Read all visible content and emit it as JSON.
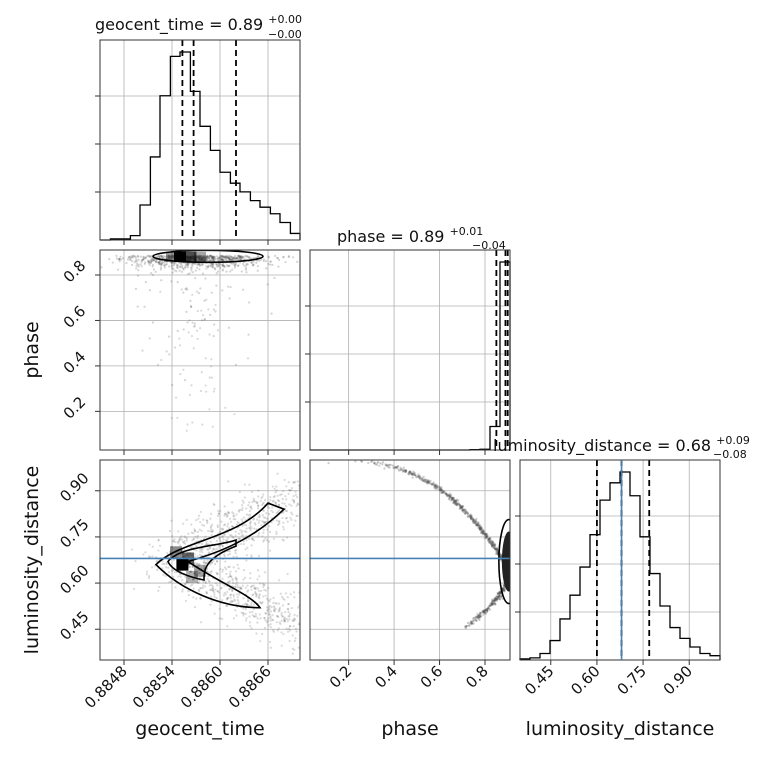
{
  "chart_data": {
    "type": "corner",
    "parameters": [
      "geocent_time",
      "phase",
      "luminosity_distance"
    ],
    "truth": {
      "luminosity_distance": 0.68
    },
    "colors": {
      "hist": "#000000",
      "truth": "#4682b4",
      "grid": "#b0b0b0",
      "scatter": "#555555"
    },
    "diagonal": [
      {
        "param": "geocent_time",
        "title_main": "geocent_time = 0.89",
        "title_sup": "+0.00",
        "title_sub": "−0.00",
        "range": [
          0.8845,
          0.887
        ],
        "ticks": [
          0.8848,
          0.8854,
          0.886,
          0.8866
        ],
        "tick_labels": [
          "0.8848",
          "0.8854",
          "0.8860",
          "0.8866"
        ],
        "quantiles": [
          0.88553,
          0.88567,
          0.8862
        ],
        "hist_bins": [
          0.8845,
          0.88463,
          0.88475,
          0.88488,
          0.885,
          0.88513,
          0.88525,
          0.88538,
          0.8855,
          0.88563,
          0.88575,
          0.88588,
          0.886,
          0.88613,
          0.88625,
          0.88638,
          0.8865,
          0.88663,
          0.88675,
          0.88688,
          0.887
        ],
        "hist_counts": [
          0,
          0.005,
          0.005,
          0.02,
          0.16,
          0.38,
          0.66,
          0.84,
          0.86,
          0.68,
          0.52,
          0.41,
          0.31,
          0.26,
          0.22,
          0.18,
          0.15,
          0.12,
          0.08,
          0.03
        ]
      },
      {
        "param": "phase",
        "title_main": "phase = 0.89",
        "title_sup": "+0.01",
        "title_sub": "−0.04",
        "range": [
          0.03,
          0.91
        ],
        "ticks": [
          0.2,
          0.4,
          0.6,
          0.8
        ],
        "tick_labels": [
          "0.2",
          "0.4",
          "0.6",
          "0.8"
        ],
        "quantiles": [
          0.85,
          0.89,
          0.9
        ],
        "hist_bins": [
          0.03,
          0.074,
          0.118,
          0.162,
          0.206,
          0.25,
          0.294,
          0.338,
          0.382,
          0.426,
          0.47,
          0.514,
          0.558,
          0.602,
          0.646,
          0.69,
          0.734,
          0.778,
          0.822,
          0.866,
          0.91
        ],
        "hist_counts": [
          0,
          0,
          0,
          0,
          0,
          0,
          0,
          0,
          0,
          0,
          0,
          0,
          0,
          0,
          0,
          0,
          0.002,
          0.004,
          0.12,
          0.96
        ]
      },
      {
        "param": "luminosity_distance",
        "title_main": "luminosity_distance = 0.68",
        "title_sup": "+0.09",
        "title_sub": "−0.08",
        "range": [
          0.35,
          1.0
        ],
        "ticks": [
          0.45,
          0.6,
          0.75,
          0.9
        ],
        "tick_labels": [
          "0.45",
          "0.60",
          "0.75",
          "0.90"
        ],
        "quantiles": [
          0.6,
          0.68,
          0.77
        ],
        "hist_bins": [
          0.35,
          0.3825,
          0.415,
          0.4475,
          0.48,
          0.5125,
          0.545,
          0.5775,
          0.61,
          0.6425,
          0.675,
          0.7075,
          0.74,
          0.7725,
          0.805,
          0.8375,
          0.87,
          0.9025,
          0.935,
          0.9675,
          1.0
        ],
        "hist_counts": [
          0.005,
          0.01,
          0.03,
          0.09,
          0.19,
          0.3,
          0.43,
          0.58,
          0.74,
          0.82,
          0.87,
          0.76,
          0.57,
          0.4,
          0.25,
          0.15,
          0.1,
          0.06,
          0.03,
          0.02
        ]
      }
    ],
    "y_axis_ticks": {
      "phase": {
        "ticks": [
          0.2,
          0.4,
          0.6,
          0.8
        ],
        "tick_labels": [
          "0.2",
          "0.4",
          "0.6",
          "0.8"
        ]
      },
      "luminosity_distance": {
        "ticks": [
          0.45,
          0.6,
          0.75,
          0.9
        ],
        "tick_labels": [
          "0.45",
          "0.60",
          "0.75",
          "0.90"
        ]
      }
    },
    "axis_labels": {
      "x": [
        "geocent_time",
        "phase",
        "luminosity_distance"
      ],
      "y": [
        "phase",
        "luminosity_distance"
      ]
    },
    "joint_peaks": [
      {
        "x": "geocent_time",
        "y": "phase",
        "peak": [
          0.88555,
          0.88
        ]
      },
      {
        "x": "geocent_time",
        "y": "luminosity_distance",
        "peak": [
          0.88553,
          0.66
        ]
      },
      {
        "x": "phase",
        "y": "luminosity_distance",
        "peak": [
          0.9,
          0.67
        ]
      }
    ]
  }
}
